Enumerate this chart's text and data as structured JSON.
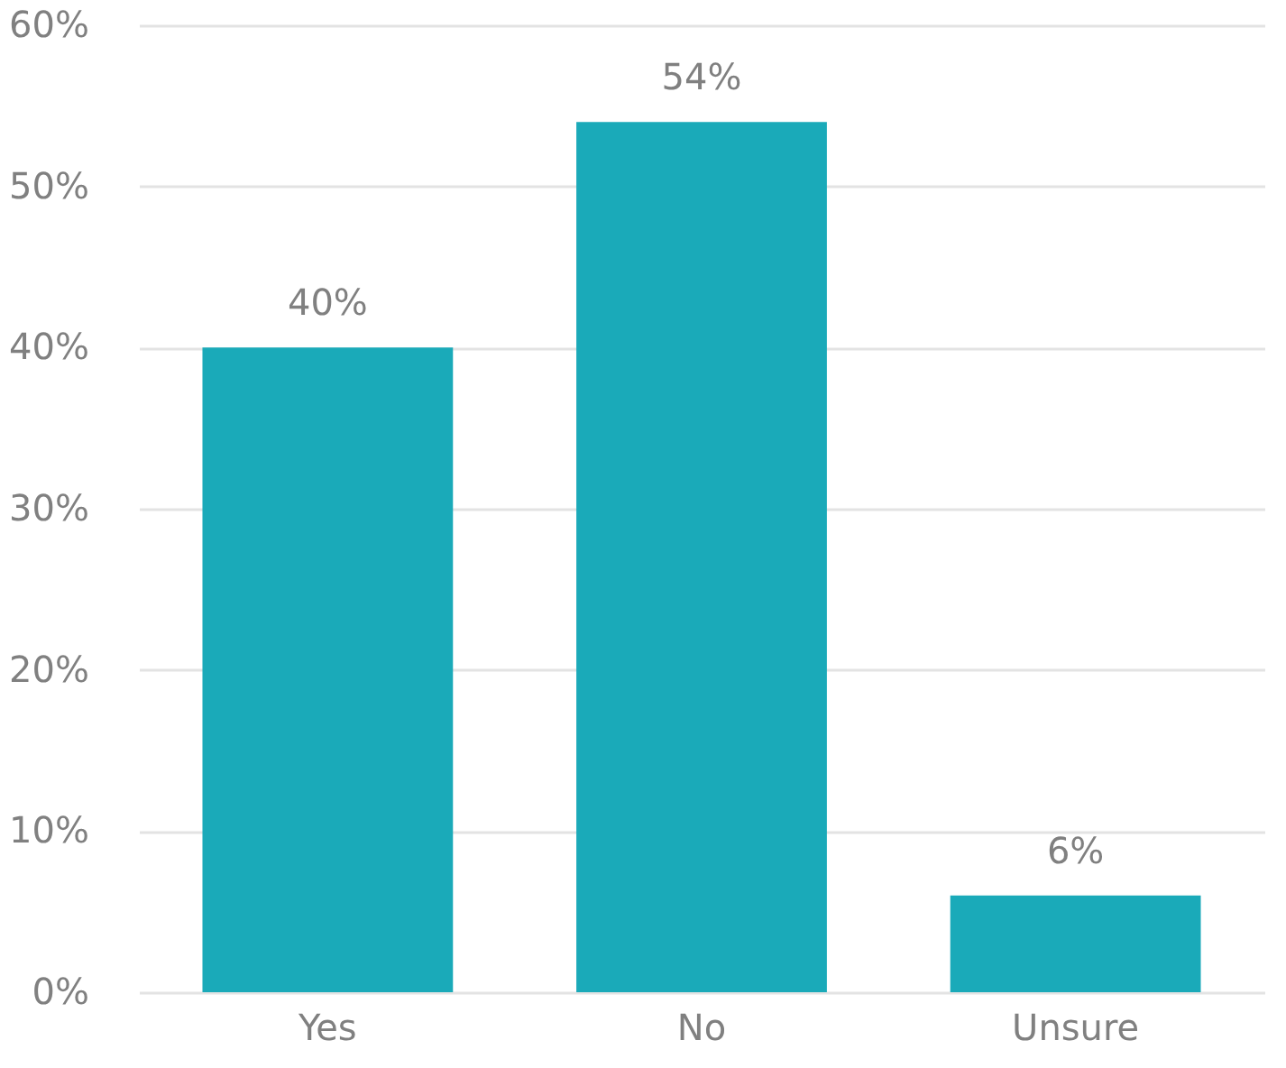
{
  "chart_data": {
    "type": "bar",
    "categories": [
      "Yes",
      "No",
      "Unsure"
    ],
    "series": [
      {
        "color": "#1aaab9",
        "values": [
          40,
          54,
          6
        ]
      }
    ],
    "value_labels": [
      "40%",
      "54%",
      "6%"
    ],
    "ylim": [
      0,
      60
    ],
    "yticks": [
      {
        "value": 0,
        "label": "0%"
      },
      {
        "value": 10,
        "label": "10%"
      },
      {
        "value": 20,
        "label": "20%"
      },
      {
        "value": 30,
        "label": "30%"
      },
      {
        "value": 40,
        "label": "40%"
      },
      {
        "value": 50,
        "label": "50%"
      },
      {
        "value": 60,
        "label": "60%"
      }
    ],
    "grid": "y"
  }
}
